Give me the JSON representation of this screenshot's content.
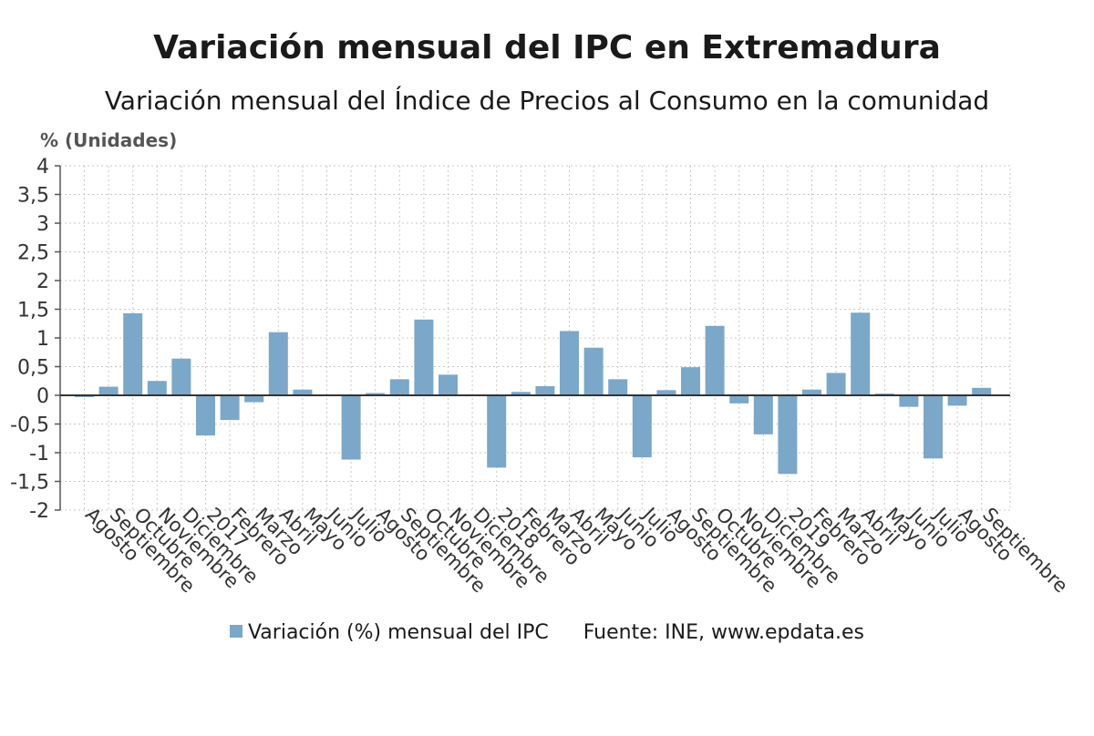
{
  "title": "Variación mensual del IPC en Extremadura",
  "subtitle": "Variación mensual del Índice de Precios al Consumo en la comunidad",
  "legend": {
    "series_label": "Variación (%) mensual del IPC",
    "source": "Fuente: INE, www.epdata.es"
  },
  "colors": {
    "bar": "#7ba7c9",
    "grid": "#c8c8c8",
    "zero_line": "#333333"
  },
  "chart_data": {
    "type": "bar",
    "ylabel": "% (Unidades)",
    "ylim": [
      -2,
      4
    ],
    "yticks": [
      "-2",
      "-1,5",
      "-1",
      "-0,5",
      "0",
      "0,5",
      "1",
      "1,5",
      "2",
      "2,5",
      "3",
      "3,5",
      "4"
    ],
    "grid": true,
    "categories": [
      "Agosto",
      "Septiembre",
      "Octubre",
      "Noviembre",
      "Diciembre",
      "2017",
      "Febrero",
      "Marzo",
      "Abril",
      "Mayo",
      "Junio",
      "Julio",
      "Agosto",
      "Septiembre",
      "Octubre",
      "Noviembre",
      "Diciembre",
      "2018",
      "Febrero",
      "Marzo",
      "Abril",
      "Mayo",
      "Junio",
      "Julio",
      "Agosto",
      "Septiembre",
      "Octubre",
      "Noviembre",
      "Diciembre",
      "2019",
      "Febrero",
      "Marzo",
      "Abril",
      "Mayo",
      "Junio",
      "Julio",
      "Agosto",
      "Septiembre"
    ],
    "series": [
      {
        "name": "Variación (%) mensual del IPC",
        "values": [
          -0.03,
          0.15,
          1.43,
          0.25,
          0.64,
          -0.7,
          -0.43,
          -0.12,
          1.1,
          0.1,
          -0.01,
          -1.12,
          0.04,
          0.28,
          1.32,
          0.36,
          0.0,
          -1.26,
          0.06,
          0.16,
          1.12,
          0.83,
          0.28,
          -1.08,
          0.09,
          0.49,
          1.21,
          -0.14,
          -0.68,
          -1.37,
          0.1,
          0.39,
          1.44,
          0.03,
          -0.2,
          -1.1,
          -0.18,
          0.13
        ]
      }
    ]
  }
}
